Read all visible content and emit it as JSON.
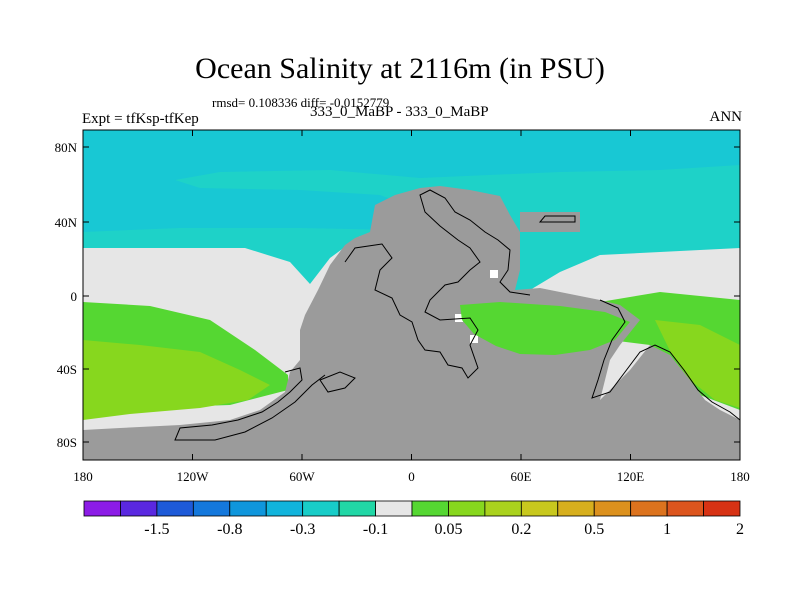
{
  "title": "Ocean Salinity at 2116m (in PSU)",
  "stats": "rmsd= 0.108336 diff= -0.0152779",
  "experiment": "Expt = tfKsp-tfKep",
  "case_label": "333_0_MaBP - 333_0_MaBP",
  "season": "ANN",
  "lat_ticks": [
    "80N",
    "40N",
    "0",
    "40S",
    "80S"
  ],
  "lon_ticks": [
    "180",
    "120W",
    "60W",
    "0",
    "60E",
    "120E",
    "180"
  ],
  "colorbar": {
    "labels": [
      "-1.5",
      "-0.8",
      "-0.3",
      "-0.1",
      "0.05",
      "0.2",
      "0.5",
      "1",
      "2"
    ],
    "colors": [
      "#8c1ce6",
      "#5a28e0",
      "#1e5ad8",
      "#1478dc",
      "#0f96dc",
      "#11b4dc",
      "#18cdc8",
      "#21d7a6",
      "#e6e6e6",
      "#55d732",
      "#87d71e",
      "#aad21e",
      "#c8c81e",
      "#d7af1e",
      "#dc911e",
      "#dc731e",
      "#dc551e",
      "#d73214"
    ]
  },
  "map_colors": {
    "land": "#9b9b9b",
    "arctic": "#18c8d4",
    "north_band": "#1ed2c8",
    "mid_band": "#21d7a6",
    "tropics": "#e6e6e6",
    "south_green": "#55d732",
    "south_yellowgreen": "#87d71e"
  }
}
